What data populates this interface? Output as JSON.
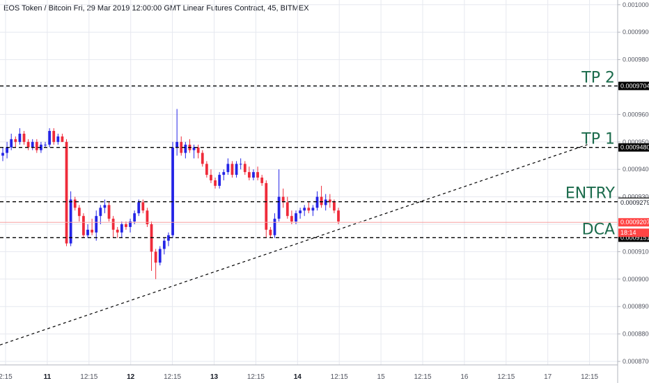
{
  "title": "EOS Token / Bitcoin Fri, 29 Mar 2019 12:00:00 GMT Linear Futures Contract, 45, BITMEX",
  "colors": {
    "up": "#2424e6",
    "down": "#ef2b3a",
    "annotation": "#1b6b4c",
    "current": "#f44"
  },
  "chart_data": {
    "type": "candlestick",
    "ylim": [
      0.00087,
      0.00101
    ],
    "y_ticks": [
      "0.0008700",
      "0.0008800",
      "0.0008900",
      "0.0009000",
      "0.0009100",
      "0.0009200",
      "0.0009300",
      "0.0009400",
      "0.0009500",
      "0.0009600",
      "0.0009700",
      "0.0009800",
      "0.0009900",
      "0.0010000"
    ],
    "x_ticks": [
      "2:15",
      "11",
      "12:15",
      "12",
      "12:15",
      "13",
      "12:15",
      "14",
      "12:15",
      "15",
      "12:15",
      "16",
      "12:15",
      "17",
      "12:15"
    ],
    "bold_x_ticks": [
      "11",
      "12",
      "13",
      "14"
    ],
    "horizontal_lines": [
      {
        "label": "TP 2",
        "value": 0.0009704,
        "price_text": "0.0009704"
      },
      {
        "label": "TP 1",
        "value": 0.000948,
        "price_text": "0.0009480"
      },
      {
        "label": "ENTRY",
        "value": 0.0009282,
        "price_text": "0.0009282"
      },
      {
        "label": "DCA",
        "value": 0.0009151,
        "price_text": "0.0009151"
      }
    ],
    "price_labels": [
      {
        "text": "0.0009279",
        "style": "white"
      },
      {
        "text": "0.0009207",
        "style": "red"
      },
      {
        "text": "18:14",
        "style": "red"
      }
    ],
    "current_price": 0.0009207,
    "trendline": {
      "from": [
        0,
        0.000876
      ],
      "to": [
        0.905,
        0.000949
      ]
    },
    "candles": [
      [
        0.000945,
        0.000948,
        0.000943,
        0.000946
      ],
      [
        0.000946,
        0.00095,
        0.000944,
        0.000948
      ],
      [
        0.000948,
        0.000953,
        0.000947,
        0.000951
      ],
      [
        0.000951,
        0.000952,
        0.000948,
        0.00095
      ],
      [
        0.00095,
        0.000955,
        0.000949,
        0.000953
      ],
      [
        0.000953,
        0.000954,
        0.000949,
        0.00095
      ],
      [
        0.00095,
        0.000951,
        0.000947,
        0.000948
      ],
      [
        0.000948,
        0.000951,
        0.000947,
        0.00095
      ],
      [
        0.00095,
        0.000951,
        0.000946,
        0.000947
      ],
      [
        0.000947,
        0.00095,
        0.000946,
        0.000949
      ],
      [
        0.000949,
        0.00095,
        0.000948,
        0.000949
      ],
      [
        0.000949,
        0.000955,
        0.000948,
        0.000954
      ],
      [
        0.000954,
        0.000955,
        0.000949,
        0.00095
      ],
      [
        0.00095,
        0.000953,
        0.000949,
        0.000952
      ],
      [
        0.000952,
        0.000953,
        0.00095,
        0.00095
      ],
      [
        0.00095,
        0.000951,
        0.000912,
        0.000913
      ],
      [
        0.000913,
        0.000932,
        0.000912,
        0.000929
      ],
      [
        0.000929,
        0.00093,
        0.000925,
        0.000926
      ],
      [
        0.000926,
        0.000927,
        0.000921,
        0.000923
      ],
      [
        0.000923,
        0.000924,
        0.000915,
        0.000916
      ],
      [
        0.000916,
        0.00092,
        0.000915,
        0.000918
      ],
      [
        0.000918,
        0.000922,
        0.000916,
        0.000917
      ],
      [
        0.000917,
        0.000925,
        0.000914,
        0.000923
      ],
      [
        0.000923,
        0.000927,
        0.00092,
        0.000926
      ],
      [
        0.000926,
        0.000929,
        0.000924,
        0.000927
      ],
      [
        0.000927,
        0.000928,
        0.000921,
        0.000922
      ],
      [
        0.000922,
        0.000923,
        0.000915,
        0.000918
      ],
      [
        0.000918,
        0.000919,
        0.000915,
        0.000917
      ],
      [
        0.000917,
        0.000921,
        0.000915,
        0.00092
      ],
      [
        0.00092,
        0.000921,
        0.000918,
        0.000919
      ],
      [
        0.000919,
        0.000922,
        0.000917,
        0.000921
      ],
      [
        0.000921,
        0.000925,
        0.00092,
        0.000924
      ],
      [
        0.000924,
        0.000929,
        0.000923,
        0.000928
      ],
      [
        0.000928,
        0.000929,
        0.000924,
        0.000925
      ],
      [
        0.000925,
        0.000926,
        0.000919,
        0.00092
      ],
      [
        0.00092,
        0.000921,
        0.000903,
        0.00091
      ],
      [
        0.00091,
        0.000911,
        0.0009,
        0.000906
      ],
      [
        0.000906,
        0.000912,
        0.000905,
        0.000911
      ],
      [
        0.000911,
        0.000915,
        0.000909,
        0.000914
      ],
      [
        0.000914,
        0.000917,
        0.000912,
        0.000916
      ],
      [
        0.000916,
        0.00095,
        0.000915,
        0.000948
      ],
      [
        0.000948,
        0.000962,
        0.000945,
        0.00095
      ],
      [
        0.00095,
        0.000952,
        0.000945,
        0.000946
      ],
      [
        0.000946,
        0.00095,
        0.000944,
        0.000949
      ],
      [
        0.000949,
        0.000951,
        0.000946,
        0.000947
      ],
      [
        0.000947,
        0.000949,
        0.000944,
        0.000948
      ],
      [
        0.000948,
        0.000949,
        0.000944,
        0.000946
      ],
      [
        0.000946,
        0.000947,
        0.000941,
        0.000942
      ],
      [
        0.000942,
        0.000943,
        0.000937,
        0.000938
      ],
      [
        0.000938,
        0.00094,
        0.000935,
        0.000936
      ],
      [
        0.000936,
        0.000937,
        0.000933,
        0.000934
      ],
      [
        0.000934,
        0.000939,
        0.000933,
        0.000938
      ],
      [
        0.000938,
        0.00094,
        0.000936,
        0.000939
      ],
      [
        0.000939,
        0.000944,
        0.000938,
        0.000942
      ],
      [
        0.000942,
        0.000943,
        0.000937,
        0.000938
      ],
      [
        0.000938,
        0.000943,
        0.000937,
        0.000942
      ],
      [
        0.000942,
        0.000944,
        0.00094,
        0.000942
      ],
      [
        0.000942,
        0.000943,
        0.000938,
        0.000939
      ],
      [
        0.000939,
        0.000941,
        0.000936,
        0.000937
      ],
      [
        0.000937,
        0.00094,
        0.000936,
        0.000939
      ],
      [
        0.000939,
        0.000941,
        0.000936,
        0.000937
      ],
      [
        0.000937,
        0.000938,
        0.000934,
        0.000935
      ],
      [
        0.000935,
        0.000936,
        0.000915,
        0.000918
      ],
      [
        0.000918,
        0.000919,
        0.000915,
        0.000916
      ],
      [
        0.000916,
        0.000924,
        0.000915,
        0.000922
      ],
      [
        0.000922,
        0.00094,
        0.000921,
        0.00093
      ],
      [
        0.00093,
        0.000933,
        0.000926,
        0.000928
      ],
      [
        0.000928,
        0.00093,
        0.000922,
        0.000923
      ],
      [
        0.000923,
        0.000925,
        0.00092,
        0.000921
      ],
      [
        0.000921,
        0.000925,
        0.00092,
        0.000924
      ],
      [
        0.000924,
        0.000926,
        0.000922,
        0.000925
      ],
      [
        0.000925,
        0.000927,
        0.000923,
        0.000926
      ],
      [
        0.000926,
        0.000928,
        0.000924,
        0.000925
      ],
      [
        0.000925,
        0.000927,
        0.000923,
        0.000926
      ],
      [
        0.000926,
        0.000932,
        0.000925,
        0.00093
      ],
      [
        0.00093,
        0.000934,
        0.000926,
        0.000927
      ],
      [
        0.000927,
        0.000931,
        0.000925,
        0.000929
      ],
      [
        0.000929,
        0.000931,
        0.000926,
        0.000928
      ],
      [
        0.000928,
        0.000929,
        0.000924,
        0.000925
      ],
      [
        0.000925,
        0.000926,
        0.00092,
        0.000921
      ]
    ]
  }
}
